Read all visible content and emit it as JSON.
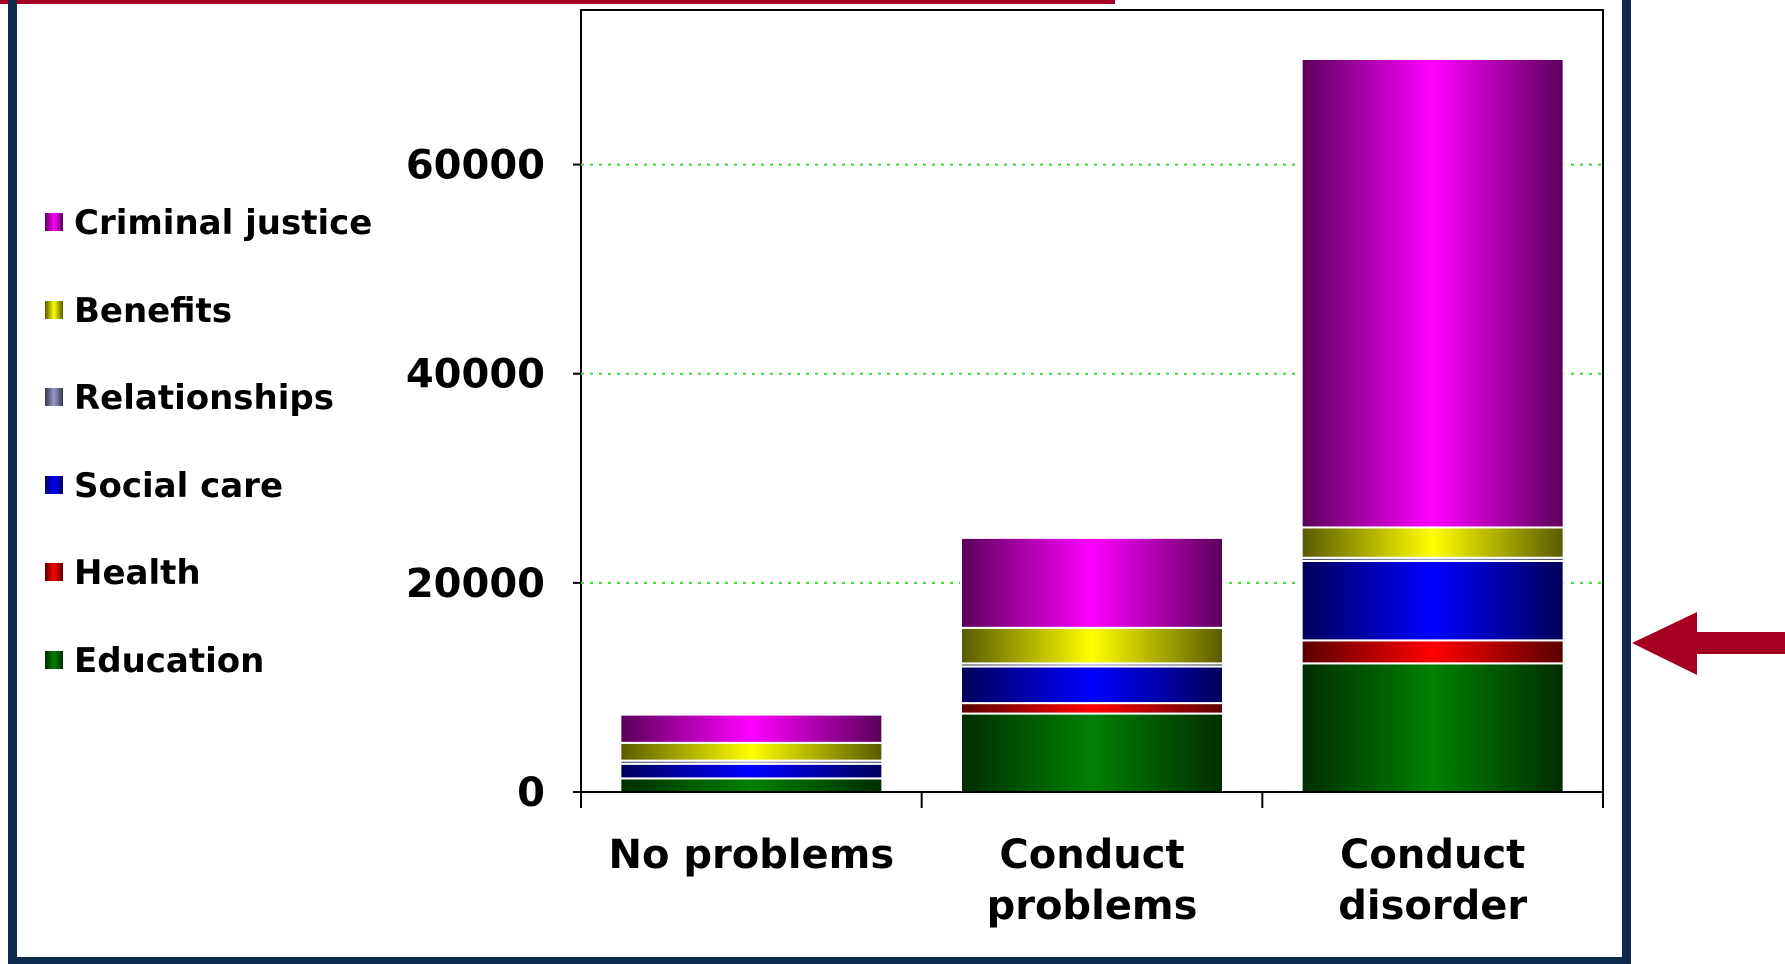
{
  "chart_data": {
    "type": "bar",
    "stacked": true,
    "categories": [
      "No problems",
      "Conduct problems",
      "Conduct disorder"
    ],
    "category_lines": [
      [
        "No problems"
      ],
      [
        "Conduct",
        "problems"
      ],
      [
        "Conduct",
        "disorder"
      ]
    ],
    "ylim": [
      0,
      70000
    ],
    "yticks": [
      0,
      20000,
      40000,
      60000
    ],
    "grid": true,
    "legend_position": "left",
    "series": [
      {
        "name": "Education",
        "color": "#008000",
        "values": [
          1300,
          7500,
          12300
        ]
      },
      {
        "name": "Health",
        "color": "#ff0000",
        "values": [
          0,
          1000,
          2200
        ]
      },
      {
        "name": "Social care",
        "color": "#0000ff",
        "values": [
          1400,
          3500,
          7600
        ]
      },
      {
        "name": "Relationships",
        "color": "#9999cc",
        "values": [
          300,
          300,
          300
        ]
      },
      {
        "name": "Benefits",
        "color": "#ffff00",
        "values": [
          1700,
          3400,
          2900
        ]
      },
      {
        "name": "Criminal justice",
        "color": "#ff00ff",
        "values": [
          2700,
          8600,
          44800
        ]
      }
    ],
    "legend_order": [
      "Criminal justice",
      "Benefits",
      "Relationships",
      "Social care",
      "Health",
      "Education"
    ],
    "grid_color": "#33dd33",
    "frame_color": "#0d2a4d",
    "accent_color": "#a50021"
  }
}
